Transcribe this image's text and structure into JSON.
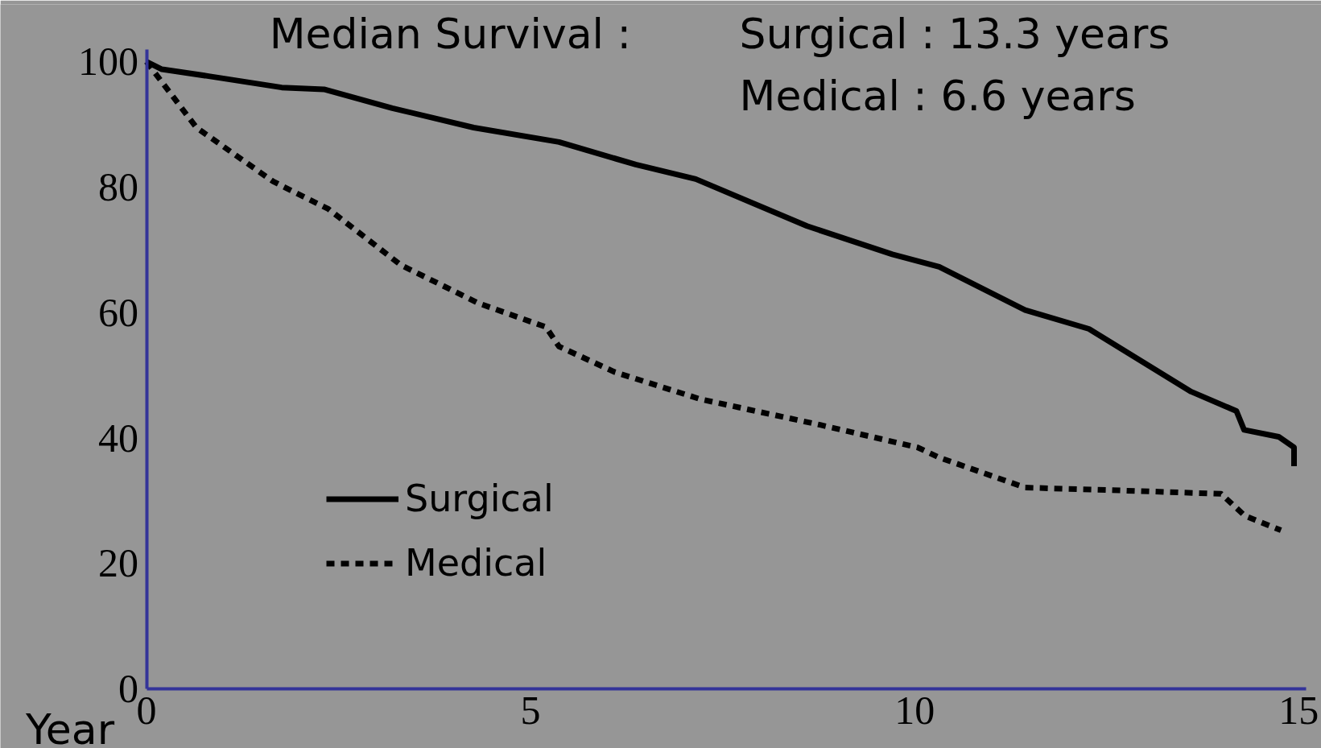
{
  "chart_data": {
    "type": "line",
    "title": "Median Survival :",
    "xlabel": "Year",
    "annotations": [
      "Surgical : 13.3 years",
      "Medical :   6.6 years"
    ],
    "xlim": [
      0,
      15.1
    ],
    "ylim": [
      0,
      102
    ],
    "xticks": [
      0,
      5,
      10,
      15
    ],
    "yticks": [
      0,
      20,
      40,
      60,
      80,
      100
    ],
    "grid": false,
    "legend": "bottom left",
    "marker": "none",
    "series": [
      {
        "name": "Surgical",
        "color": "#000000",
        "line_style": "solid",
        "x": [
          0,
          0.2,
          0.81,
          1.76,
          2.31,
          3.2,
          4.26,
          5.37,
          6.37,
          7.15,
          8.6,
          9.71,
          10.32,
          11.44,
          12.27,
          13.6,
          14.19,
          14.29,
          14.74,
          14.94,
          14.94
        ],
        "values": [
          100,
          98.8,
          97.7,
          95.9,
          95.6,
          92.6,
          89.5,
          87.2,
          83.6,
          81.3,
          73.8,
          69.3,
          67.3,
          60.4,
          57.4,
          47.4,
          44.3,
          41.3,
          40.2,
          38.5,
          35.5
        ]
      },
      {
        "name": "Medical",
        "color": "#000000",
        "line_style": "dotted",
        "x": [
          0,
          0.65,
          1.65,
          2.37,
          3.31,
          4.32,
          5.2,
          5.37,
          6.1,
          7.21,
          8.77,
          10.04,
          10.32,
          11.44,
          12.55,
          13.99,
          14.3,
          14.77
        ],
        "values": [
          100,
          89.5,
          80.9,
          76.5,
          67.6,
          61.5,
          57.7,
          54.6,
          50.5,
          46.2,
          42.1,
          38.5,
          36.9,
          32.1,
          31.7,
          31.1,
          27.6,
          25.3
        ]
      }
    ]
  }
}
